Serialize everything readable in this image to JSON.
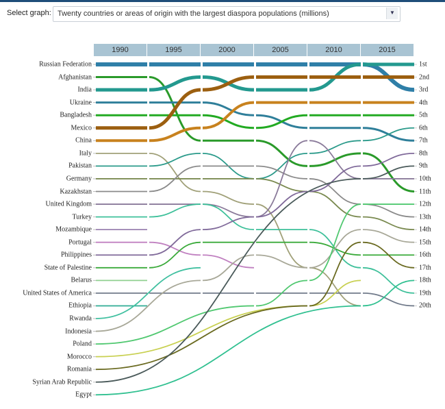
{
  "controls": {
    "select_label": "Select graph:",
    "selected_graph": "Twenty countries or areas of origin with the largest diaspora populations (millions)",
    "dropdown_icon": "triangle-down"
  },
  "chart_data": {
    "type": "bump",
    "title": "Twenty countries or areas of origin with the largest diaspora populations (millions)",
    "years": [
      "1990",
      "1995",
      "2000",
      "2005",
      "2010",
      "2015"
    ],
    "rank_labels": [
      "1st",
      "2nd",
      "3rd",
      "4th",
      "5th",
      "6th",
      "7th",
      "8th",
      "9th",
      "10th",
      "11th",
      "12th",
      "13th",
      "14th",
      "15th",
      "16th",
      "17th",
      "18th",
      "19th",
      "20th"
    ],
    "countries": [
      {
        "name": "Russian Federation",
        "color": "#2f7fa8",
        "ranks": [
          1,
          1,
          1,
          1,
          1,
          3
        ]
      },
      {
        "name": "Afghanistan",
        "color": "#2a9a2a",
        "ranks": [
          2,
          7,
          7,
          9,
          8,
          11
        ]
      },
      {
        "name": "India",
        "color": "#23998f",
        "ranks": [
          3,
          2,
          3,
          3,
          1,
          1
        ]
      },
      {
        "name": "Ukraine",
        "color": "#2f7f9a",
        "ranks": [
          4,
          4,
          5,
          6,
          6,
          7
        ]
      },
      {
        "name": "Bangladesh",
        "color": "#22aa22",
        "ranks": [
          5,
          5,
          6,
          5,
          5,
          5
        ]
      },
      {
        "name": "Mexico",
        "color": "#9c5f10",
        "ranks": [
          6,
          3,
          2,
          2,
          2,
          2
        ]
      },
      {
        "name": "China",
        "color": "#c8821e",
        "ranks": [
          7,
          6,
          4,
          4,
          4,
          4
        ]
      },
      {
        "name": "Italy",
        "color": "#a0a078",
        "ranks": [
          8,
          11,
          12,
          17,
          20,
          null
        ]
      },
      {
        "name": "Pakistan",
        "color": "#2a9a8a",
        "ranks": [
          9,
          8,
          10,
          8,
          7,
          6
        ]
      },
      {
        "name": "Germany",
        "color": "#7a8a50",
        "ranks": [
          10,
          10,
          10,
          11,
          13,
          14
        ]
      },
      {
        "name": "Kazakhstan",
        "color": "#8a8a8a",
        "ranks": [
          11,
          9,
          9,
          10,
          12,
          13
        ]
      },
      {
        "name": "United Kingdom",
        "color": "#8a7a9a",
        "ranks": [
          12,
          12,
          13,
          7,
          10,
          10
        ]
      },
      {
        "name": "Turkey",
        "color": "#3ec09a",
        "ranks": [
          13,
          12,
          14,
          14,
          17,
          19
        ]
      },
      {
        "name": "Mozambique",
        "color": "#9a80b0",
        "ranks": [
          14,
          null,
          null,
          null,
          null,
          null
        ]
      },
      {
        "name": "Portugal",
        "color": "#c080c0",
        "ranks": [
          15,
          16,
          17,
          null,
          null,
          null
        ]
      },
      {
        "name": "Philippines",
        "color": "#806a9a",
        "ranks": [
          16,
          14,
          13,
          11,
          9,
          8
        ]
      },
      {
        "name": "State of Palestine",
        "color": "#3aaa3a",
        "ranks": [
          17,
          15,
          15,
          15,
          16,
          16
        ]
      },
      {
        "name": "Belarus",
        "color": "#90d090",
        "ranks": [
          18,
          null,
          null,
          null,
          null,
          null
        ]
      },
      {
        "name": "United States of America",
        "color": "#707a8a",
        "ranks": [
          19,
          19,
          19,
          19,
          19,
          20
        ]
      },
      {
        "name": "Ethiopia",
        "color": "#3ab09a",
        "ranks": [
          20,
          null,
          null,
          null,
          null,
          null
        ]
      },
      {
        "name": "Rwanda",
        "color": "#40c0a0",
        "ranks": [
          null,
          17,
          null,
          null,
          null,
          null
        ]
      },
      {
        "name": "Indonesia",
        "color": "#a8a898",
        "ranks": [
          null,
          18,
          16,
          17,
          14,
          15
        ]
      },
      {
        "name": "Poland",
        "color": "#50c870",
        "ranks": [
          null,
          null,
          20,
          18,
          12,
          12
        ]
      },
      {
        "name": "Morocco",
        "color": "#c8d050",
        "ranks": [
          null,
          null,
          null,
          20,
          18,
          null
        ]
      },
      {
        "name": "Romania",
        "color": "#6a6a20",
        "ranks": [
          null,
          null,
          null,
          20,
          15,
          17
        ]
      },
      {
        "name": "Syrian Arab Republic",
        "color": "#4a5a5a",
        "ranks": [
          null,
          null,
          null,
          null,
          10,
          9
        ]
      },
      {
        "name": "Egypt",
        "color": "#30c090",
        "ranks": [
          null,
          null,
          null,
          null,
          20,
          18
        ]
      }
    ]
  }
}
